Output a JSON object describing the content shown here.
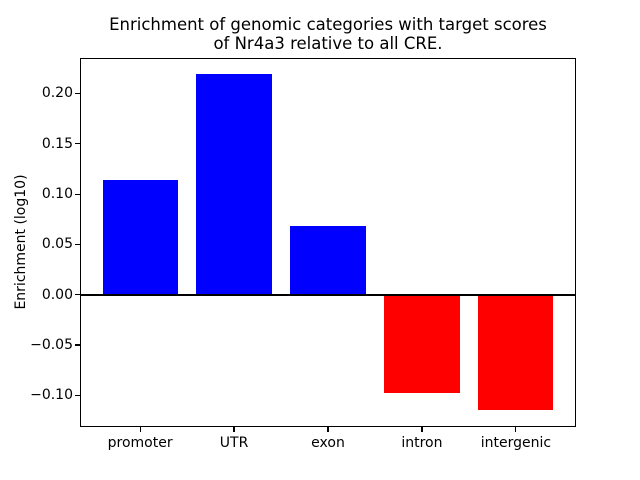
{
  "chart_data": {
    "type": "bar",
    "title": "Enrichment of genomic categories with target scores\nof Nr4a3 relative to all CRE.",
    "xlabel": "",
    "ylabel": "Enrichment (log10)",
    "categories": [
      "promoter",
      "UTR",
      "exon",
      "intron",
      "intergenic"
    ],
    "values": [
      0.114,
      0.219,
      0.068,
      -0.098,
      -0.115
    ],
    "bar_colors": [
      "#0000ff",
      "#0000ff",
      "#0000ff",
      "#ff0000",
      "#ff0000"
    ],
    "positive_color": "#0000ff",
    "negative_color": "#ff0000",
    "ylim": [
      -0.1317,
      0.2356
    ],
    "xlim": [
      -0.64,
      4.64
    ],
    "bar_width": 0.8,
    "yticks": [
      -0.1,
      -0.05,
      0.0,
      0.05,
      0.1,
      0.15,
      0.2
    ],
    "ytick_labels": [
      "−0.10",
      "−0.05",
      "0.00",
      "0.05",
      "0.10",
      "0.15",
      "0.20"
    ],
    "zero_line": true,
    "grid": false,
    "legend": false,
    "axis_color": "#000000",
    "background_color": "#ffffff"
  }
}
